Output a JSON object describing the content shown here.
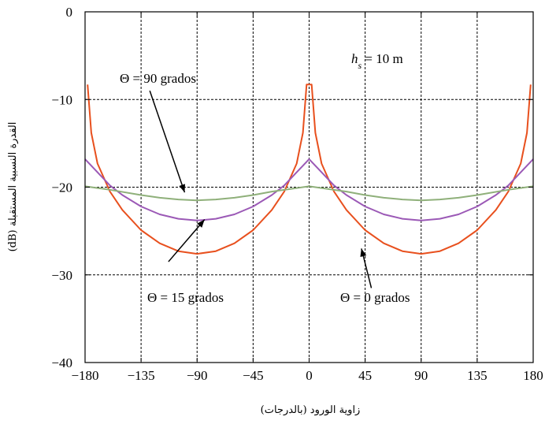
{
  "chart_data": {
    "type": "line",
    "xlabel": "زاوية الورود (بالدرجات)",
    "ylabel": "القدرة النسبية المستقبلة (dB)",
    "xlim": [
      -180,
      180
    ],
    "ylim": [
      -40,
      0
    ],
    "xticks": [
      -180,
      -135,
      -90,
      -45,
      0,
      45,
      90,
      135,
      180
    ],
    "yticks": [
      0,
      -10,
      -20,
      -30,
      -40
    ],
    "grid": true,
    "annotations": [
      {
        "text": "hs = 10 m"
      },
      {
        "text": "Θ = 90 grados",
        "series": "Θ = 90 grados"
      },
      {
        "text": "Θ = 15 grados",
        "series": "Θ = 15 grados"
      },
      {
        "text": "Θ = 0 grados",
        "series": "Θ = 0 grados"
      }
    ],
    "series": [
      {
        "name": "Θ = 0 grados",
        "color": "#e8501e",
        "x": [
          -178,
          -175,
          -170,
          -160,
          -150,
          -135,
          -120,
          -105,
          -90,
          -75,
          -60,
          -45,
          -30,
          -20,
          -10,
          -5,
          -2,
          2,
          5,
          10,
          20,
          30,
          45,
          60,
          75,
          90,
          105,
          120,
          135,
          150,
          160,
          170,
          175,
          178
        ],
        "y": [
          -8.3,
          -13.8,
          -17.3,
          -20.5,
          -22.6,
          -24.9,
          -26.4,
          -27.3,
          -27.6,
          -27.3,
          -26.4,
          -24.9,
          -22.6,
          -20.5,
          -17.3,
          -13.8,
          -8.3,
          -8.3,
          -13.8,
          -17.3,
          -20.5,
          -22.6,
          -24.9,
          -26.4,
          -27.3,
          -27.6,
          -27.3,
          -26.4,
          -24.9,
          -22.6,
          -20.5,
          -17.3,
          -13.8,
          -8.3
        ]
      },
      {
        "name": "Θ = 15 grados",
        "color": "#9b59b6",
        "x": [
          -180,
          -170,
          -160,
          -150,
          -135,
          -120,
          -105,
          -90,
          -75,
          -60,
          -45,
          -30,
          -20,
          -10,
          0,
          10,
          20,
          30,
          45,
          60,
          75,
          90,
          105,
          120,
          135,
          150,
          160,
          170,
          180
        ],
        "y": [
          -16.8,
          -18.3,
          -19.8,
          -20.9,
          -22.2,
          -23.1,
          -23.6,
          -23.8,
          -23.6,
          -23.1,
          -22.2,
          -20.9,
          -19.8,
          -18.3,
          -16.8,
          -18.3,
          -19.8,
          -20.9,
          -22.2,
          -23.1,
          -23.6,
          -23.8,
          -23.6,
          -23.1,
          -22.2,
          -20.9,
          -19.8,
          -18.3,
          -16.8
        ]
      },
      {
        "name": "Θ = 90 grados",
        "color": "#8fb07a",
        "x": [
          -180,
          -160,
          -135,
          -120,
          -105,
          -90,
          -75,
          -60,
          -45,
          -30,
          -15,
          0,
          15,
          30,
          45,
          60,
          75,
          90,
          105,
          120,
          135,
          160,
          180
        ],
        "y": [
          -19.9,
          -20.3,
          -20.9,
          -21.2,
          -21.4,
          -21.5,
          -21.4,
          -21.2,
          -20.9,
          -20.5,
          -20.2,
          -19.9,
          -20.2,
          -20.5,
          -20.9,
          -21.2,
          -21.4,
          -21.5,
          -21.4,
          -21.2,
          -20.9,
          -20.3,
          -19.9
        ]
      }
    ]
  }
}
